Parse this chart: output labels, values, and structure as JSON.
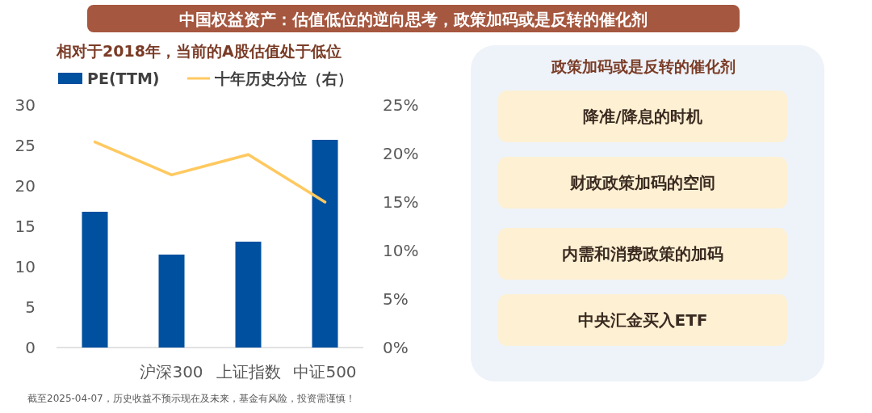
{
  "chart_data": [
    {
      "type": "bar",
      "title": "中国权益资产：估值低位的逆向思考，政策加码或是反转的催化剂",
      "subtitle": "相对于2018年，当前的A股估值处于低位",
      "categories": [
        null,
        "沪深300",
        "上证指数",
        "中证500"
      ],
      "series": [
        {
          "name": "PE(TTM)",
          "type": "bar",
          "color": "#0050a0",
          "values": [
            16.8,
            11.5,
            13.1,
            25.7
          ]
        },
        {
          "name": "十年历史分位（右）",
          "type": "line",
          "axis": "y2",
          "color": "#ffc960",
          "values": [
            21.2,
            17.8,
            19.9,
            15.0
          ]
        }
      ],
      "ylim": [
        0,
        30
      ],
      "yticks": [
        0,
        5,
        10,
        15,
        20,
        25,
        30
      ],
      "y2lim": [
        0,
        25
      ],
      "y2ticks": [
        {
          "value": 0,
          "label": "0%"
        },
        {
          "value": 5,
          "label": "5%"
        },
        {
          "value": 10,
          "label": "10%"
        },
        {
          "value": 15,
          "label": "15%"
        },
        {
          "value": 20,
          "label": "20%"
        },
        {
          "value": 25,
          "label": "25%"
        }
      ],
      "legend": "top left",
      "grid": false,
      "annotations": [
        "截至2025-04-07，历史收益不预示现在及未来，基金有风险，投资需谨慎！"
      ]
    },
    {
      "type": "other",
      "title": "政策加码或是反转的催化剂",
      "annotations": [
        "降准/降息的时机",
        "财政政策加码的空间",
        "内需和消费政策的加码",
        "中央汇金买入ETF"
      ]
    }
  ]
}
